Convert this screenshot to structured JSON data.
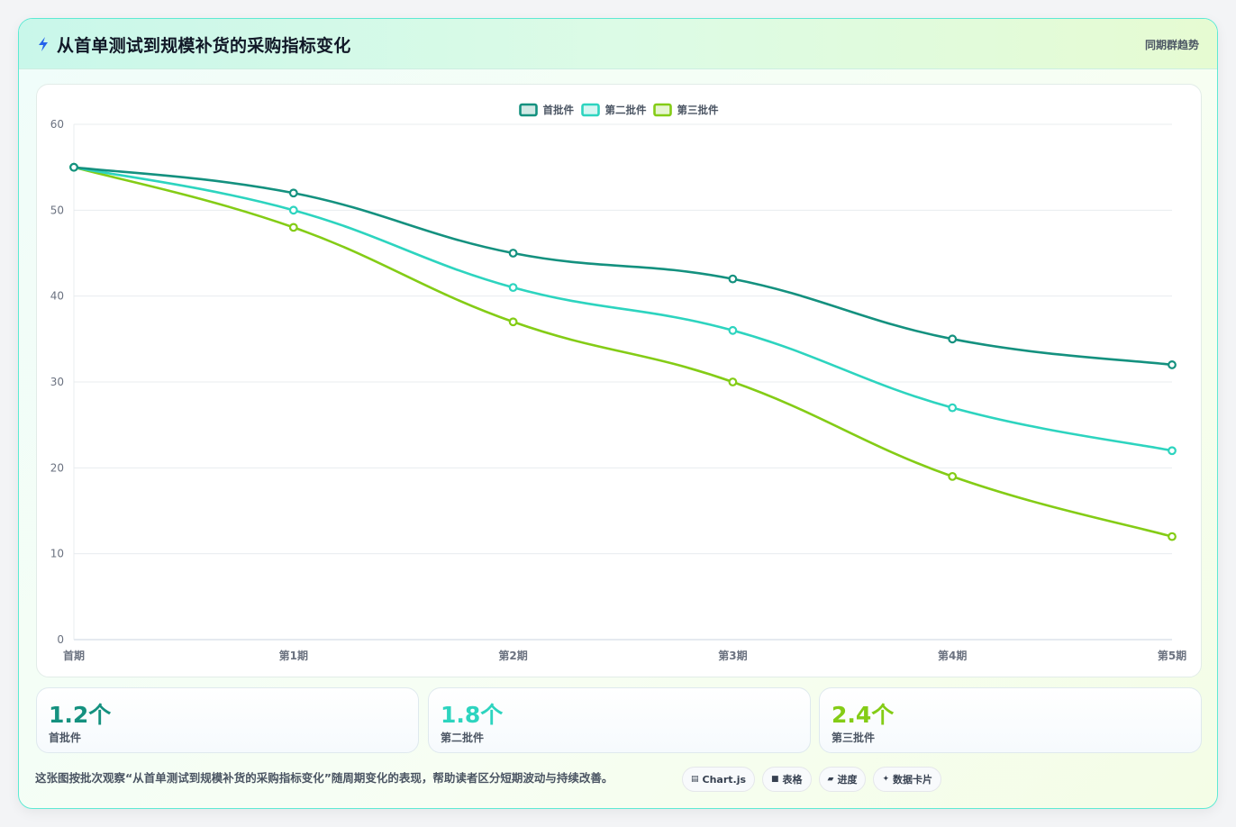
{
  "header": {
    "title": "从首单测试到规模补货的采购指标变化",
    "tag": "同期群趋势"
  },
  "chart_data": {
    "type": "line",
    "categories": [
      "首期",
      "第1期",
      "第2期",
      "第3期",
      "第4期",
      "第5期"
    ],
    "series": [
      {
        "name": "首批件",
        "color": "#14917f",
        "values": [
          55,
          52,
          45,
          42,
          35,
          32
        ]
      },
      {
        "name": "第二批件",
        "color": "#2dd4bf",
        "values": [
          55,
          50,
          41,
          36,
          27,
          22
        ]
      },
      {
        "name": "第三批件",
        "color": "#84cc16",
        "values": [
          55,
          48,
          37,
          30,
          19,
          12
        ]
      }
    ],
    "ylim": [
      0,
      60
    ],
    "yticks": [
      "0",
      "10",
      "20",
      "30",
      "40",
      "50",
      "60"
    ],
    "grid": true,
    "legend": "top-center",
    "smooth": true
  },
  "stats": [
    {
      "value": "1.2个",
      "label": "首批件",
      "color": "#14917f"
    },
    {
      "value": "1.8个",
      "label": "第二批件",
      "color": "#2dd4bf"
    },
    {
      "value": "2.4个",
      "label": "第三批件",
      "color": "#84cc16"
    }
  ],
  "note": "这张图按批次观察“从首单测试到规模补货的采购指标变化”随周期变化的表现，帮助读者区分短期波动与持续改善。",
  "pills": [
    {
      "icon": "chart-icon",
      "glyph": "▤",
      "label": "Chart.js"
    },
    {
      "icon": "table-icon",
      "glyph": "■",
      "label": "表格"
    },
    {
      "icon": "progress-icon",
      "glyph": "▰",
      "label": "进度"
    },
    {
      "icon": "sparkle-icon",
      "glyph": "✦",
      "label": "数据卡片"
    }
  ]
}
